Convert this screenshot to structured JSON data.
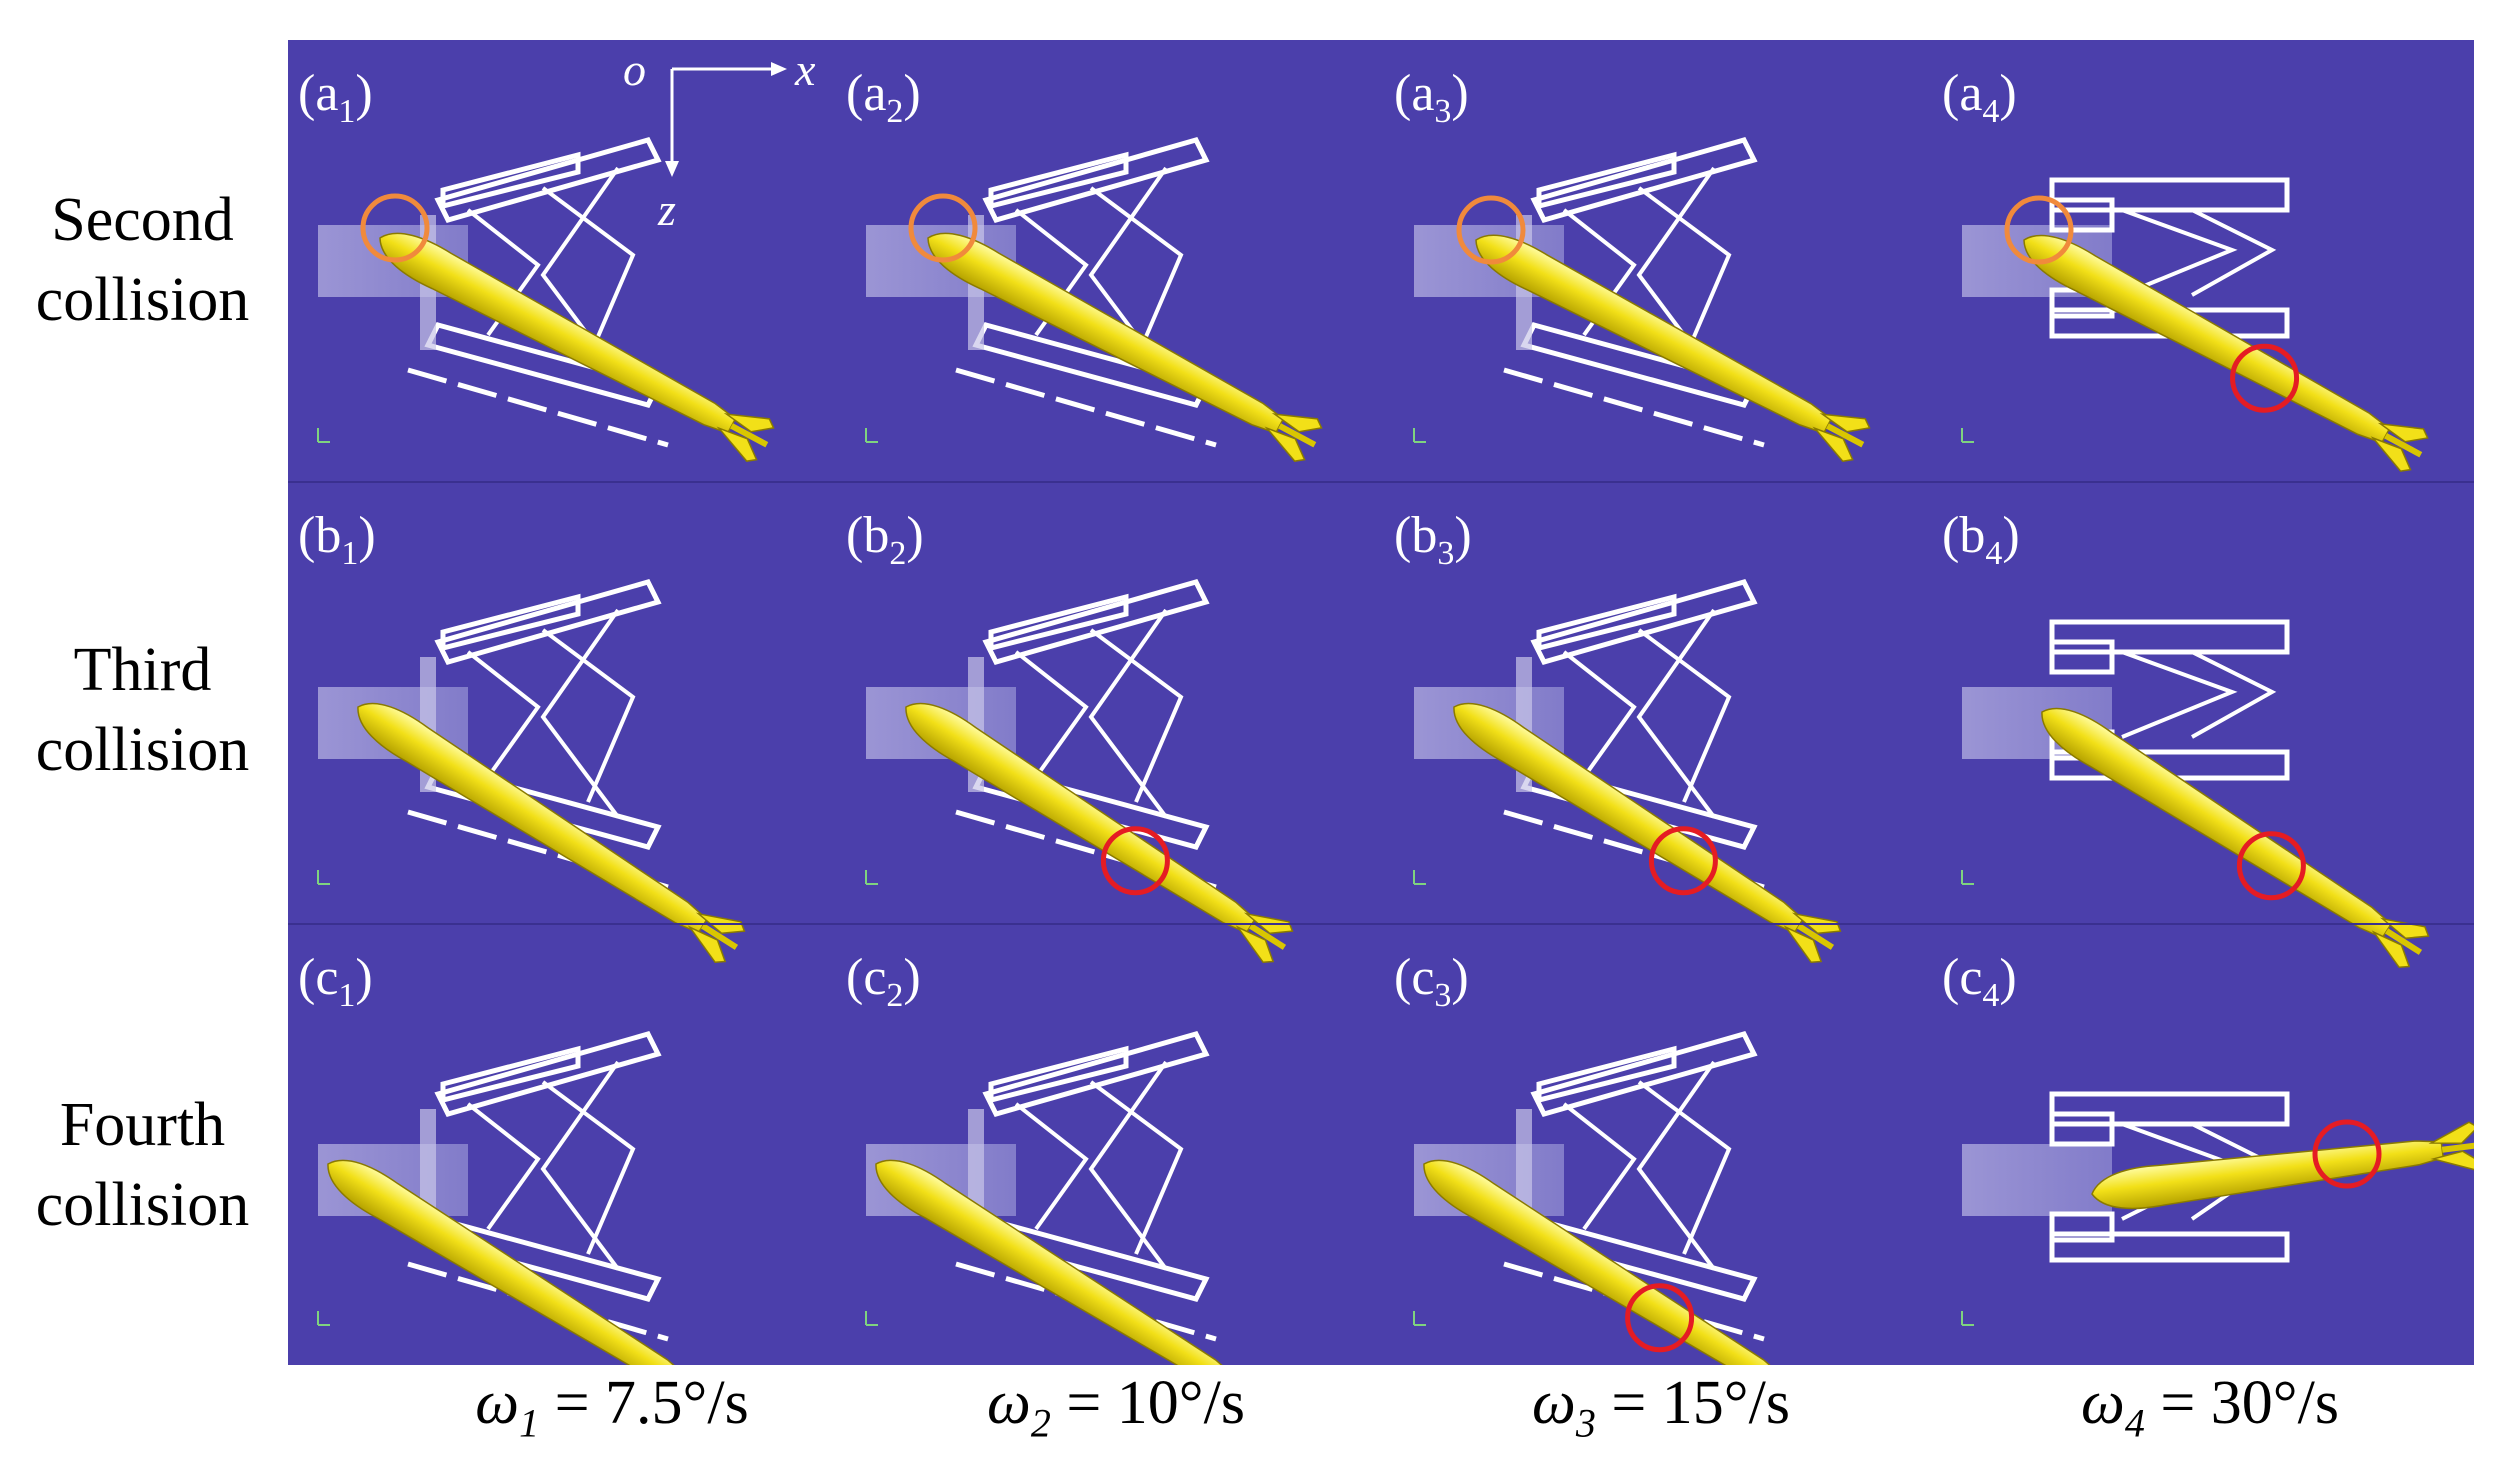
{
  "rows": [
    {
      "label_line1": "Second",
      "label_line2": "collision"
    },
    {
      "label_line1": "Third",
      "label_line2": "collision"
    },
    {
      "label_line1": "Fourth",
      "label_line2": "collision"
    }
  ],
  "panels": [
    [
      "a1",
      "a2",
      "a3",
      "a4"
    ],
    [
      "b1",
      "b2",
      "b3",
      "b4"
    ],
    [
      "c1",
      "c2",
      "c3",
      "c4"
    ]
  ],
  "columns": [
    {
      "symbol": "ω",
      "sub": "1",
      "value": " = 7.5°/s"
    },
    {
      "symbol": "ω",
      "sub": "2",
      "value": " = 10°/s"
    },
    {
      "symbol": "ω",
      "sub": "3",
      "value": " = 15°/s"
    },
    {
      "symbol": "ω",
      "sub": "4",
      "value": " = 30°/s"
    }
  ],
  "axes": {
    "origin": "o",
    "x": "x",
    "z": "z"
  },
  "colors": {
    "background": "#4b3fab",
    "projectile": "#f2e018",
    "frame": "#ffffff",
    "marker_orange": "#f08a3c",
    "marker_red": "#e51c23"
  },
  "markers": [
    {
      "panel": "a1",
      "color": "orange",
      "target": "nose"
    },
    {
      "panel": "a2",
      "color": "orange",
      "target": "nose"
    },
    {
      "panel": "a3",
      "color": "orange",
      "target": "nose"
    },
    {
      "panel": "a4",
      "color": "orange",
      "target": "nose"
    },
    {
      "panel": "a4",
      "color": "red",
      "target": "lower-arm"
    },
    {
      "panel": "b2",
      "color": "red",
      "target": "lower-arm"
    },
    {
      "panel": "b3",
      "color": "red",
      "target": "lower-arm"
    },
    {
      "panel": "b4",
      "color": "red",
      "target": "lower-arm"
    },
    {
      "panel": "c3",
      "color": "red",
      "target": "lower-arm"
    },
    {
      "panel": "c4",
      "color": "red",
      "target": "upper-arm"
    }
  ]
}
